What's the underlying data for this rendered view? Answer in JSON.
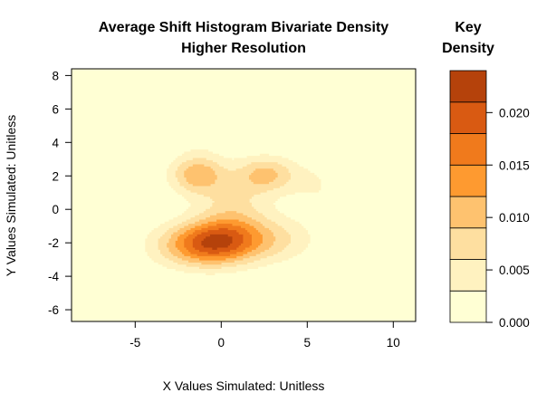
{
  "chart_data": {
    "type": "filled-contour",
    "title": "Average Shift Histogram Bivariate Density",
    "subtitle": "Higher Resolution",
    "xlabel": "X Values Simulated: Unitless",
    "ylabel": "Y Values Simulated: Unitless",
    "xlim": [
      -8.7,
      11.3
    ],
    "ylim": [
      -6.7,
      8.4
    ],
    "x_ticks": [
      -5,
      0,
      5,
      10
    ],
    "y_ticks": [
      -6,
      -4,
      -2,
      0,
      2,
      4,
      6,
      8
    ],
    "density_modes": [
      {
        "x": -0.5,
        "y": -2.0,
        "peak": 0.023
      },
      {
        "x": -1.3,
        "y": 2.1,
        "peak": 0.016
      },
      {
        "x": 2.5,
        "y": 2.1,
        "peak": 0.014
      }
    ],
    "key": {
      "title_line1": "Key",
      "title_line2": "Density",
      "levels": [
        0.0,
        0.003,
        0.006,
        0.009,
        0.012,
        0.015,
        0.018,
        0.021,
        0.024
      ],
      "colors": [
        "#FFFFD4",
        "#FFF2C0",
        "#FEDFA0",
        "#FEC26F",
        "#FE9A30",
        "#F07A1C",
        "#D95A12",
        "#B5420B",
        "#953405"
      ],
      "ticks": [
        0.0,
        0.005,
        0.01,
        0.015,
        0.02
      ],
      "tick_labels": [
        "0.000",
        "0.005",
        "0.010",
        "0.015",
        "0.020"
      ]
    }
  }
}
